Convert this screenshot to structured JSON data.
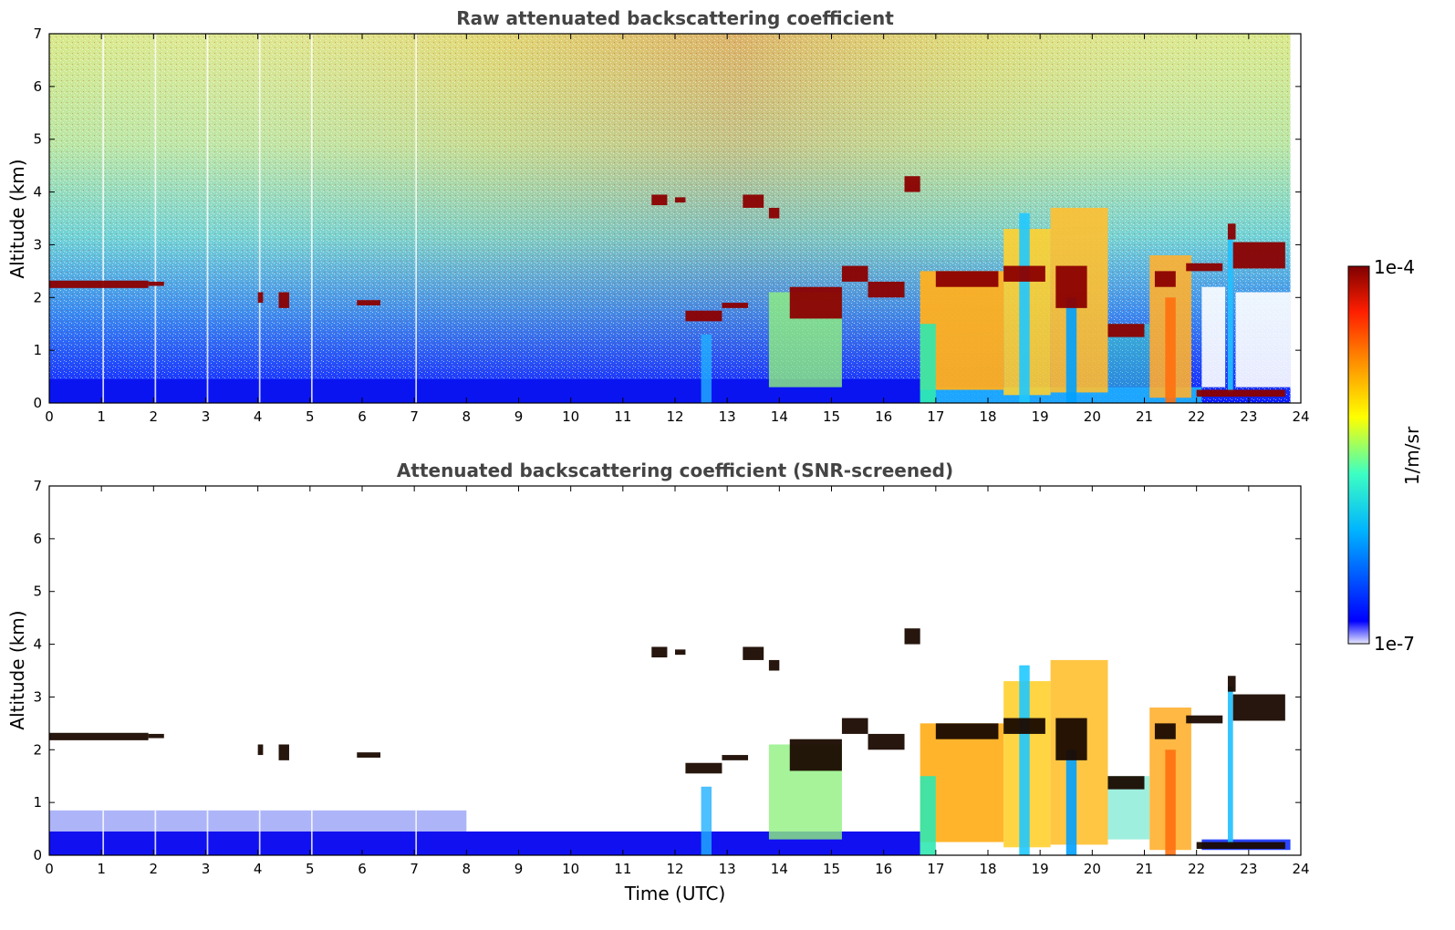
{
  "chart_data": [
    {
      "type": "heatmap",
      "title": "Raw attenuated backscattering coefficient",
      "xlabel": "",
      "ylabel": "Altitude (km)",
      "xlim": [
        0,
        24
      ],
      "ylim": [
        0,
        7
      ],
      "xticks": [
        "0",
        "1",
        "2",
        "3",
        "4",
        "5",
        "6",
        "7",
        "8",
        "9",
        "10",
        "11",
        "12",
        "13",
        "14",
        "15",
        "16",
        "17",
        "18",
        "19",
        "20",
        "21",
        "22",
        "23",
        "24"
      ],
      "yticks": [
        "0",
        "1",
        "2",
        "3",
        "4",
        "5",
        "6",
        "7"
      ],
      "colorscale": "jet",
      "features": [
        {
          "x0": 0.0,
          "x1": 1.9,
          "alt": 2.25,
          "level": "high"
        },
        {
          "x0": 11.6,
          "x1": 12.3,
          "alt": 3.8,
          "level": "high"
        },
        {
          "x0": 12.2,
          "x1": 13.2,
          "alt": 1.7,
          "level": "high"
        },
        {
          "x0": 13.3,
          "x1": 14.0,
          "alt": 3.8,
          "level": "high"
        },
        {
          "x0": 14.0,
          "x1": 16.0,
          "alt": 2.2,
          "level": "high"
        },
        {
          "x0": 16.6,
          "x1": 22.0,
          "alt": 2.4,
          "level": "high"
        },
        {
          "x0": 22.0,
          "x1": 23.8,
          "alt": 0.2,
          "level": "high"
        },
        {
          "x0": 22.7,
          "x1": 23.8,
          "alt": 2.8,
          "level": "high"
        }
      ]
    },
    {
      "type": "heatmap",
      "title": "Attenuated backscattering coefficient (SNR-screened)",
      "xlabel": "Time (UTC)",
      "ylabel": "Altitude (km)",
      "xlim": [
        0,
        24
      ],
      "ylim": [
        0,
        7
      ],
      "xticks": [
        "0",
        "1",
        "2",
        "3",
        "4",
        "5",
        "6",
        "7",
        "8",
        "9",
        "10",
        "11",
        "12",
        "13",
        "14",
        "15",
        "16",
        "17",
        "18",
        "19",
        "20",
        "21",
        "22",
        "23",
        "24"
      ],
      "yticks": [
        "0",
        "1",
        "2",
        "3",
        "4",
        "5",
        "6",
        "7"
      ],
      "colorscale": "jet",
      "screened_background": "#ffffff"
    }
  ],
  "colorbar": {
    "label": "1/m/sr",
    "max_label": "1e-4",
    "min_label": "1e-7",
    "stops": [
      "#e8e8ff",
      "#0000ff",
      "#00b4ff",
      "#3cffc3",
      "#ffff00",
      "#ff8c00",
      "#ff1e00",
      "#7f0000"
    ]
  }
}
